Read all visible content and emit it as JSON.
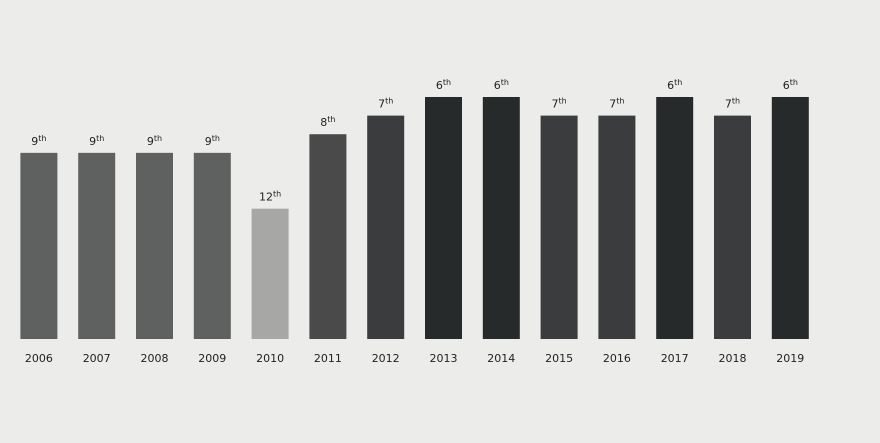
{
  "chart_data": {
    "type": "bar",
    "categories": [
      "2006",
      "2007",
      "2008",
      "2009",
      "2010",
      "2011",
      "2012",
      "2013",
      "2014",
      "2015",
      "2016",
      "2017",
      "2018",
      "2019"
    ],
    "values": [
      9,
      9,
      9,
      9,
      12,
      8,
      7,
      6,
      6,
      7,
      7,
      6,
      7,
      6
    ],
    "value_labels": [
      "9th",
      "9th",
      "9th",
      "9th",
      "12th",
      "8th",
      "7th",
      "6th",
      "6th",
      "7th",
      "7th",
      "6th",
      "7th",
      "6th"
    ],
    "colors": [
      "#5f6161",
      "#5f6161",
      "#5f6161",
      "#5f6161",
      "#a7a7a6",
      "#4a4a4a",
      "#3a3c3d",
      "#262a2a",
      "#262a2a",
      "#3a3c3d",
      "#3a3c3d",
      "#262a2a",
      "#3a3c3d",
      "#262a2a"
    ],
    "ylim": [
      19,
      6
    ]
  }
}
